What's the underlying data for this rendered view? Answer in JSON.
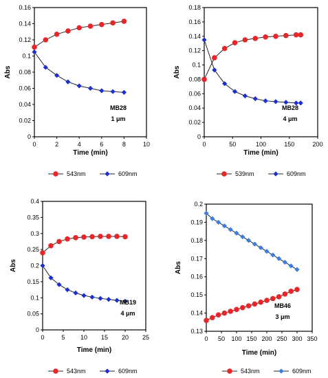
{
  "chart_data": [
    {
      "type": "line",
      "xlabel": "Time (min)",
      "ylabel": "Abs",
      "xlim": [
        0,
        10
      ],
      "ylim": [
        0,
        0.16
      ],
      "xticks": [
        0,
        2,
        4,
        6,
        8,
        10
      ],
      "yticks": [
        0,
        0.02,
        0.04,
        0.06,
        0.08,
        0.1,
        0.12,
        0.14,
        0.16
      ],
      "annotations": [
        "MB28",
        "1 μm"
      ],
      "legend_position": "bottom",
      "series": [
        {
          "name": "543nm",
          "color": "#e8262a",
          "marker": "circle",
          "x": [
            0,
            1,
            2,
            3,
            4,
            5,
            6,
            7,
            8
          ],
          "y": [
            0.111,
            0.12,
            0.127,
            0.131,
            0.135,
            0.137,
            0.139,
            0.141,
            0.143
          ]
        },
        {
          "name": "609nm",
          "color": "#1a2fd0",
          "marker": "diamond",
          "x": [
            0,
            1,
            2,
            3,
            4,
            5,
            6,
            7,
            8
          ],
          "y": [
            0.105,
            0.086,
            0.076,
            0.068,
            0.063,
            0.06,
            0.057,
            0.056,
            0.055
          ]
        }
      ]
    },
    {
      "type": "line",
      "xlabel": "Time (min)",
      "ylabel": "Abs",
      "xlim": [
        0,
        200
      ],
      "ylim": [
        0,
        0.18
      ],
      "xticks": [
        0,
        50,
        100,
        150,
        200
      ],
      "yticks": [
        0,
        0.02,
        0.04,
        0.06,
        0.08,
        0.1,
        0.12,
        0.14,
        0.16,
        0.18
      ],
      "annotations": [
        "MB28",
        "4 μm"
      ],
      "legend_position": "bottom",
      "series": [
        {
          "name": "539nm",
          "color": "#e8262a",
          "marker": "circle",
          "x": [
            0,
            18,
            36,
            54,
            72,
            90,
            108,
            126,
            144,
            162,
            170
          ],
          "y": [
            0.08,
            0.11,
            0.123,
            0.131,
            0.135,
            0.137,
            0.139,
            0.14,
            0.141,
            0.142,
            0.142
          ]
        },
        {
          "name": "609nm",
          "color": "#1a2fd0",
          "marker": "diamond",
          "x": [
            0,
            18,
            36,
            54,
            72,
            90,
            108,
            126,
            144,
            162,
            170
          ],
          "y": [
            0.135,
            0.093,
            0.074,
            0.063,
            0.057,
            0.053,
            0.05,
            0.049,
            0.048,
            0.047,
            0.047
          ]
        }
      ]
    },
    {
      "type": "line",
      "xlabel": "Time (min)",
      "ylabel": "Abs",
      "xlim": [
        0,
        25
      ],
      "ylim": [
        0,
        0.4
      ],
      "xticks": [
        0,
        5,
        10,
        15,
        20,
        25
      ],
      "yticks": [
        0,
        0.05,
        0.1,
        0.15,
        0.2,
        0.25,
        0.3,
        0.35,
        0.4
      ],
      "annotations": [
        "MB19",
        "4 μm"
      ],
      "legend_position": "bottom",
      "series": [
        {
          "name": "543nm",
          "color": "#e8262a",
          "marker": "circle",
          "x": [
            0,
            2,
            4,
            6,
            8,
            10,
            12,
            14,
            16,
            18,
            20
          ],
          "y": [
            0.24,
            0.262,
            0.275,
            0.283,
            0.287,
            0.289,
            0.29,
            0.291,
            0.291,
            0.291,
            0.29
          ]
        },
        {
          "name": "609nm",
          "color": "#1a2fd0",
          "marker": "diamond",
          "x": [
            0,
            2,
            4,
            6,
            8,
            10,
            12,
            14,
            16,
            18,
            20
          ],
          "y": [
            0.2,
            0.162,
            0.141,
            0.125,
            0.115,
            0.107,
            0.102,
            0.098,
            0.095,
            0.092,
            0.089
          ]
        }
      ]
    },
    {
      "type": "line",
      "xlabel": "Time (min)",
      "ylabel": "Abs",
      "xlim": [
        0,
        350
      ],
      "ylim": [
        0.13,
        0.2
      ],
      "xticks": [
        0,
        50,
        100,
        150,
        200,
        250,
        300,
        350
      ],
      "yticks": [
        0.13,
        0.14,
        0.15,
        0.16,
        0.17,
        0.18,
        0.19,
        0.2
      ],
      "annotations": [
        "MB46",
        "3 μm"
      ],
      "legend_position": "bottom",
      "series": [
        {
          "name": "543nm",
          "color": "#e8262a",
          "marker": "circle",
          "x": [
            0,
            20,
            40,
            60,
            80,
            100,
            120,
            140,
            160,
            180,
            200,
            220,
            240,
            260,
            280,
            300
          ],
          "y": [
            0.136,
            0.1375,
            0.139,
            0.14,
            0.141,
            0.142,
            0.143,
            0.144,
            0.145,
            0.146,
            0.147,
            0.148,
            0.149,
            0.1505,
            0.152,
            0.153
          ]
        },
        {
          "name": "609nm",
          "color": "#3b7de0",
          "marker": "diamond",
          "x": [
            0,
            20,
            40,
            60,
            80,
            100,
            120,
            140,
            160,
            180,
            200,
            220,
            240,
            260,
            280,
            300
          ],
          "y": [
            0.195,
            0.192,
            0.19,
            0.188,
            0.186,
            0.184,
            0.182,
            0.18,
            0.178,
            0.176,
            0.174,
            0.172,
            0.17,
            0.168,
            0.166,
            0.164
          ]
        }
      ]
    }
  ]
}
